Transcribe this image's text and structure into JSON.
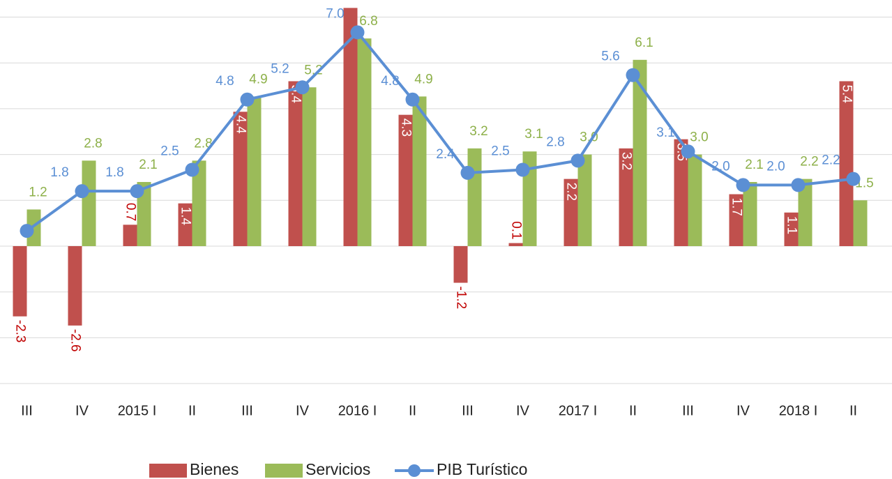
{
  "chart_data": {
    "type": "bar-line",
    "categories": [
      "III",
      "IV",
      "2015 I",
      "II",
      "III",
      "IV",
      "2016 I",
      "II",
      "III",
      "IV",
      "2017 I",
      "II",
      "III",
      "IV",
      "2018 I",
      "II"
    ],
    "series": [
      {
        "name": "Bienes",
        "type": "bar",
        "color": "#c0504d",
        "values": [
          -2.3,
          -2.6,
          0.7,
          1.4,
          4.4,
          5.4,
          7.8,
          4.3,
          -1.2,
          0.1,
          2.2,
          3.2,
          3.5,
          1.7,
          1.1,
          5.4
        ],
        "value_labels": [
          "-2.3",
          "-2.6",
          "0.7",
          "1.4",
          "4.4",
          "5.4",
          null,
          "4.3",
          "-1.2",
          "0.1",
          "2.2",
          "3.2",
          "3.5",
          "1.7",
          "1.1",
          "5.4"
        ]
      },
      {
        "name": "Servicios",
        "type": "bar",
        "color": "#9bbb59",
        "values": [
          1.2,
          2.8,
          2.1,
          2.8,
          4.9,
          5.2,
          6.8,
          4.9,
          3.2,
          3.1,
          3.0,
          6.1,
          3.0,
          2.1,
          2.2,
          1.5
        ],
        "value_labels": [
          "1.2",
          "2.8",
          "2.1",
          "2.8",
          "4.9",
          "5.2",
          "6.8",
          "4.9",
          "3.2",
          "3.1",
          "3.0",
          "6.1",
          "3.0",
          "2.1",
          "2.2",
          "1.5"
        ]
      },
      {
        "name": "PIB Turístico",
        "type": "line",
        "color": "#5b8fd4",
        "values": [
          0.5,
          1.8,
          1.8,
          2.5,
          4.8,
          5.2,
          7.0,
          4.8,
          2.4,
          2.5,
          2.8,
          5.6,
          3.1,
          2.0,
          2.0,
          2.2
        ],
        "value_labels": [
          null,
          "1.8",
          "1.8",
          "2.5",
          "4.8",
          "5.2",
          "7.0",
          "4.8",
          "2.4",
          "2.5",
          "2.8",
          "5.6",
          "3.1",
          "2.0",
          "2.0",
          "2.2"
        ]
      }
    ],
    "ylim": [
      -4.5,
      8.0
    ],
    "yticks": [
      -4.5,
      -3,
      -1.5,
      0,
      1.5,
      3,
      4.5,
      6,
      7.5
    ],
    "grid": true,
    "legend": "bottom"
  }
}
